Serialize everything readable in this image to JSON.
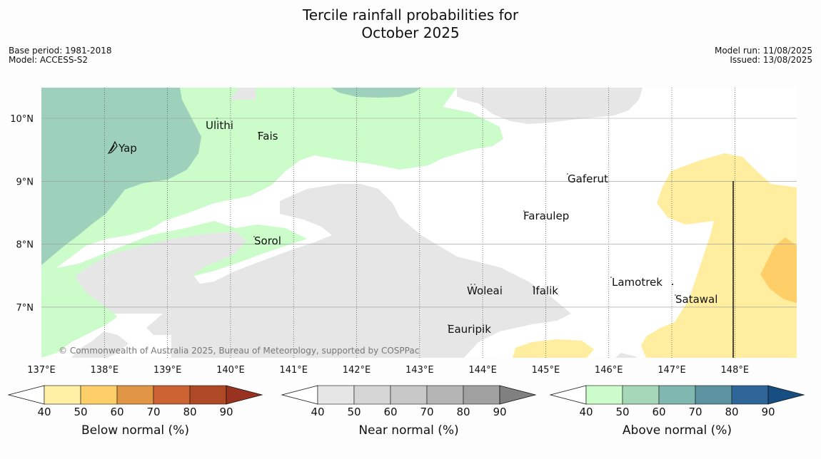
{
  "title_line1": "Tercile rainfall probabilities for",
  "title_line2": "October 2025",
  "base_period": "Base period: 1981-2018",
  "model": "Model: ACCESS-S2",
  "model_run": "Model run: 11/08/2025",
  "issued": "Issued: 13/08/2025",
  "copyright": "© Commonwealth of Australia 2025, Bureau of Meteorology, supported by COSPPac",
  "lon_labels": [
    "137°E",
    "138°E",
    "139°E",
    "140°E",
    "141°E",
    "142°E",
    "143°E",
    "144°E",
    "145°E",
    "146°E",
    "147°E",
    "148°E"
  ],
  "lat_labels": [
    "10°N",
    "9°N",
    "8°N",
    "7°N"
  ],
  "places": [
    "Yap",
    "Ulithi",
    "Fais",
    "Sorol",
    "Gaferut",
    "Faraulep",
    "Woleai",
    "Ifalik",
    "Lamotrek",
    "Satawal",
    "Eauripik"
  ],
  "colorbars": [
    {
      "label": "Below normal (%)",
      "ticks": [
        "40",
        "50",
        "60",
        "70",
        "80",
        "90"
      ],
      "colors": [
        "#fff0a6",
        "#fecf68",
        "#e19645",
        "#cd6233",
        "#ae4825",
        "#9a3221"
      ]
    },
    {
      "label": "Near normal (%)",
      "ticks": [
        "40",
        "50",
        "60",
        "70",
        "80",
        "90"
      ],
      "colors": [
        "#e6e6e6",
        "#d6d6d6",
        "#c8c8c8",
        "#b5b5b5",
        "#a1a1a1",
        "#808080"
      ]
    },
    {
      "label": "Above normal (%)",
      "ticks": [
        "40",
        "50",
        "60",
        "70",
        "80",
        "90"
      ],
      "colors": [
        "#cbfcca",
        "#a5d8b6",
        "#80b7b0",
        "#5b93a1",
        "#2f6699",
        "#174e82"
      ]
    }
  ],
  "colors": {
    "near_normal": "#e6e6e6",
    "above_40": "#cbfcca",
    "above_50": "#9ed1bb",
    "below_40": "#ffee9f",
    "below_50": "#fecf68"
  }
}
